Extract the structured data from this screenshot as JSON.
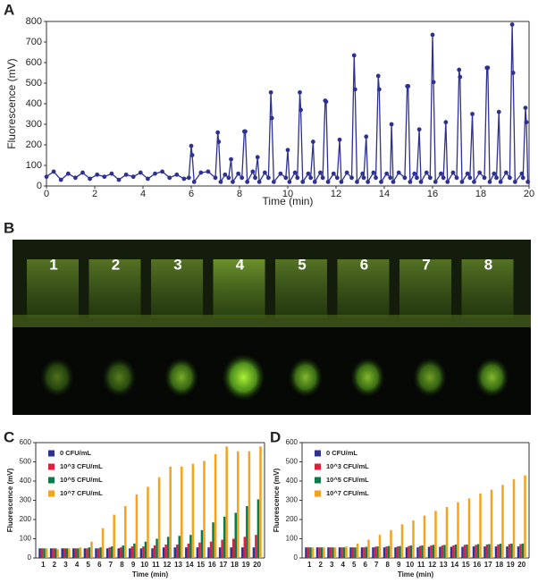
{
  "chart_data": [
    {
      "type": "line",
      "panel": "A",
      "x_label": "Time (min)",
      "y_label": "Fluorescence (mV)",
      "color": "#2e3192",
      "xlim": [
        0,
        20
      ],
      "xticks": [
        0,
        2,
        4,
        6,
        8,
        10,
        12,
        14,
        16,
        18,
        20
      ],
      "ylim": [
        0,
        800
      ],
      "yticks": [
        0,
        100,
        200,
        300,
        400,
        500,
        600,
        700,
        800
      ],
      "x": [
        0,
        0.3,
        0.6,
        0.9,
        1.2,
        1.5,
        1.8,
        2.1,
        2.4,
        2.7,
        3.0,
        3.3,
        3.6,
        3.9,
        4.2,
        4.5,
        4.8,
        5.1,
        5.4,
        5.7,
        5.9,
        6.0,
        6.04,
        6.12,
        6.4,
        6.7,
        7.0,
        7.1,
        7.14,
        7.22,
        7.4,
        7.55,
        7.65,
        7.72,
        7.95,
        8.1,
        8.2,
        8.24,
        8.32,
        8.55,
        8.65,
        8.75,
        8.82,
        9.05,
        9.2,
        9.3,
        9.34,
        9.42,
        9.7,
        9.92,
        10.0,
        10.07,
        10.3,
        10.4,
        10.5,
        10.54,
        10.62,
        10.85,
        10.95,
        11.05,
        11.12,
        11.35,
        11.45,
        11.55,
        11.59,
        11.67,
        11.9,
        12.05,
        12.15,
        12.22,
        12.45,
        12.65,
        12.75,
        12.79,
        12.87,
        13.1,
        13.15,
        13.25,
        13.32,
        13.55,
        13.65,
        13.75,
        13.79,
        13.87,
        14.1,
        14.25,
        14.3,
        14.37,
        14.6,
        14.85,
        14.95,
        14.99,
        15.07,
        15.25,
        15.35,
        15.45,
        15.52,
        15.75,
        15.9,
        16.0,
        16.04,
        16.12,
        16.35,
        16.45,
        16.55,
        16.62,
        16.85,
        17.0,
        17.1,
        17.14,
        17.22,
        17.45,
        17.55,
        17.65,
        17.72,
        17.95,
        18.15,
        18.25,
        18.29,
        18.37,
        18.55,
        18.65,
        18.75,
        18.82,
        19.05,
        19.2,
        19.3,
        19.34,
        19.42,
        19.7,
        19.75,
        19.85,
        19.89,
        19.95
      ],
      "values": [
        45,
        70,
        30,
        60,
        40,
        65,
        35,
        55,
        45,
        60,
        30,
        55,
        45,
        65,
        35,
        60,
        70,
        40,
        55,
        35,
        40,
        195,
        150,
        20,
        65,
        70,
        40,
        260,
        215,
        20,
        55,
        40,
        130,
        20,
        60,
        40,
        265,
        265,
        20,
        70,
        40,
        140,
        20,
        65,
        40,
        455,
        330,
        20,
        60,
        40,
        175,
        20,
        65,
        40,
        455,
        370,
        20,
        60,
        40,
        215,
        20,
        65,
        40,
        415,
        410,
        20,
        60,
        40,
        225,
        20,
        65,
        40,
        635,
        470,
        20,
        60,
        40,
        240,
        20,
        65,
        40,
        535,
        470,
        20,
        60,
        40,
        300,
        20,
        65,
        40,
        485,
        485,
        20,
        60,
        40,
        275,
        20,
        65,
        40,
        735,
        505,
        20,
        60,
        40,
        310,
        20,
        65,
        40,
        565,
        530,
        20,
        60,
        40,
        350,
        20,
        65,
        40,
        575,
        575,
        20,
        60,
        40,
        360,
        20,
        65,
        40,
        785,
        550,
        20,
        60,
        40,
        380,
        310,
        20
      ]
    },
    {
      "type": "bar",
      "panel": "C",
      "x_label": "Time (min)",
      "y_label": "Fluorescence (mV)",
      "categories": [
        "1",
        "2",
        "3",
        "4",
        "5",
        "6",
        "7",
        "8",
        "9",
        "10",
        "11",
        "12",
        "13",
        "14",
        "15",
        "16",
        "17",
        "18",
        "19",
        "20"
      ],
      "ylim": [
        0,
        600
      ],
      "yticks": [
        0,
        100,
        200,
        300,
        400,
        500,
        600
      ],
      "series": [
        {
          "name": "0 CFU/mL",
          "color": "#2e3192",
          "values": [
            50,
            50,
            50,
            50,
            50,
            50,
            50,
            50,
            50,
            50,
            50,
            55,
            55,
            55,
            55,
            55,
            55,
            55,
            55,
            55
          ]
        },
        {
          "name": "10^3 CFU/mL",
          "color": "#e0203a",
          "values": [
            50,
            50,
            50,
            50,
            50,
            50,
            55,
            55,
            60,
            60,
            65,
            70,
            70,
            75,
            80,
            85,
            95,
            100,
            110,
            120
          ]
        },
        {
          "name": "10^5 CFU/mL",
          "color": "#0a7a4a",
          "values": [
            50,
            50,
            50,
            50,
            55,
            55,
            60,
            65,
            75,
            85,
            100,
            110,
            115,
            120,
            145,
            185,
            215,
            235,
            270,
            305
          ]
        },
        {
          "name": "10^7 CFU/mL",
          "color": "#f7a21b",
          "values": [
            50,
            45,
            50,
            55,
            85,
            155,
            225,
            270,
            330,
            370,
            420,
            475,
            475,
            490,
            505,
            540,
            580,
            555,
            555,
            580
          ]
        }
      ]
    },
    {
      "type": "bar",
      "panel": "D",
      "x_label": "Time (min)",
      "y_label": "Fluorescence (mV)",
      "categories": [
        "1",
        "2",
        "3",
        "4",
        "5",
        "6",
        "7",
        "8",
        "9",
        "10",
        "11",
        "12",
        "13",
        "14",
        "15",
        "16",
        "17",
        "18",
        "19",
        "20"
      ],
      "ylim": [
        0,
        600
      ],
      "yticks": [
        0,
        100,
        200,
        300,
        400,
        500,
        600
      ],
      "series": [
        {
          "name": "0 CFU/mL",
          "color": "#2e3192",
          "values": [
            55,
            55,
            55,
            55,
            55,
            55,
            55,
            55,
            55,
            55,
            55,
            58,
            58,
            58,
            58,
            60,
            60,
            60,
            60,
            60
          ]
        },
        {
          "name": "10^3 CFU/mL",
          "color": "#e0203a",
          "values": [
            55,
            55,
            55,
            55,
            55,
            55,
            58,
            60,
            60,
            62,
            62,
            65,
            65,
            65,
            68,
            68,
            70,
            70,
            72,
            72
          ]
        },
        {
          "name": "10^5 CFU/mL",
          "color": "#0a7a4a",
          "values": [
            55,
            55,
            55,
            55,
            55,
            58,
            60,
            62,
            62,
            65,
            65,
            68,
            68,
            70,
            70,
            72,
            72,
            74,
            75,
            75
          ]
        },
        {
          "name": "10^7 CFU/mL",
          "color": "#f7a21b",
          "values": [
            55,
            55,
            55,
            60,
            75,
            95,
            120,
            145,
            175,
            195,
            220,
            245,
            265,
            290,
            310,
            335,
            355,
            380,
            410,
            430
          ]
        }
      ]
    }
  ],
  "photo": {
    "panel": "B",
    "labels": [
      "1",
      "2",
      "3",
      "4",
      "5",
      "6",
      "7",
      "8"
    ]
  }
}
